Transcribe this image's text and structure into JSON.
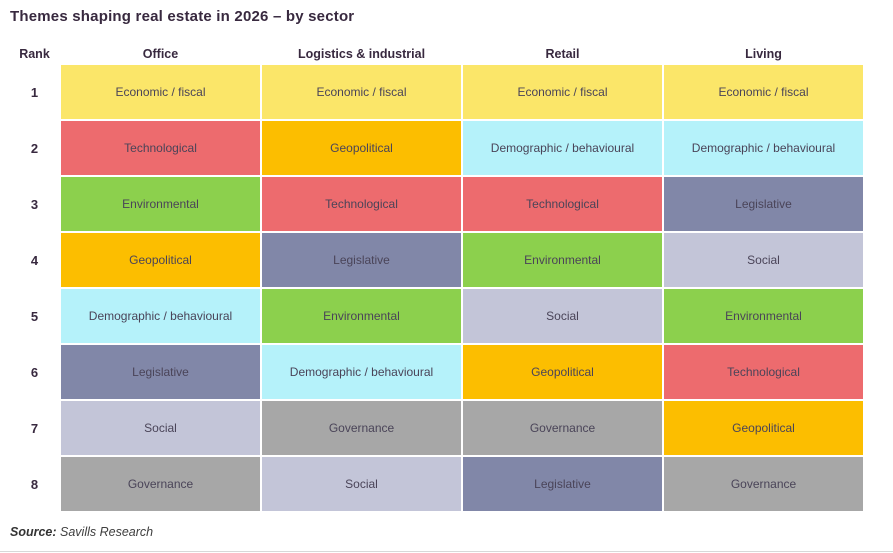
{
  "title": "Themes shaping real estate in 2026 – by sector",
  "source": {
    "label": "Source:",
    "text": " Savills Research"
  },
  "chart_data": {
    "type": "table",
    "title": "Themes shaping real estate in 2026 – by sector",
    "columns": [
      "Rank",
      "Office",
      "Logistics & industrial",
      "Retail",
      "Living"
    ],
    "rows": [
      {
        "rank": "1",
        "cells": [
          "Economic / fiscal",
          "Economic / fiscal",
          "Economic / fiscal",
          "Economic / fiscal"
        ]
      },
      {
        "rank": "2",
        "cells": [
          "Technological",
          "Geopolitical",
          "Demographic / behavioural",
          "Demographic / behavioural"
        ]
      },
      {
        "rank": "3",
        "cells": [
          "Environmental",
          "Technological",
          "Technological",
          "Legislative"
        ]
      },
      {
        "rank": "4",
        "cells": [
          "Geopolitical",
          "Legislative",
          "Environmental",
          "Social"
        ]
      },
      {
        "rank": "5",
        "cells": [
          "Demographic / behavioural",
          "Environmental",
          "Social",
          "Environmental"
        ]
      },
      {
        "rank": "6",
        "cells": [
          "Legislative",
          "Demographic / behavioural",
          "Geopolitical",
          "Technological"
        ]
      },
      {
        "rank": "7",
        "cells": [
          "Social",
          "Governance",
          "Governance",
          "Geopolitical"
        ]
      },
      {
        "rank": "8",
        "cells": [
          "Governance",
          "Social",
          "Legislative",
          "Governance"
        ]
      }
    ],
    "theme_colors": {
      "Economic / fiscal": "#fbe669",
      "Technological": "#ed6b6e",
      "Geopolitical": "#fcbe00",
      "Environmental": "#8cd04d",
      "Demographic / behavioural": "#b5f2fa",
      "Legislative": "#8187a8",
      "Social": "#c3c5d8",
      "Governance": "#a7a7a7"
    },
    "legend_position": "none",
    "grid": "off"
  }
}
